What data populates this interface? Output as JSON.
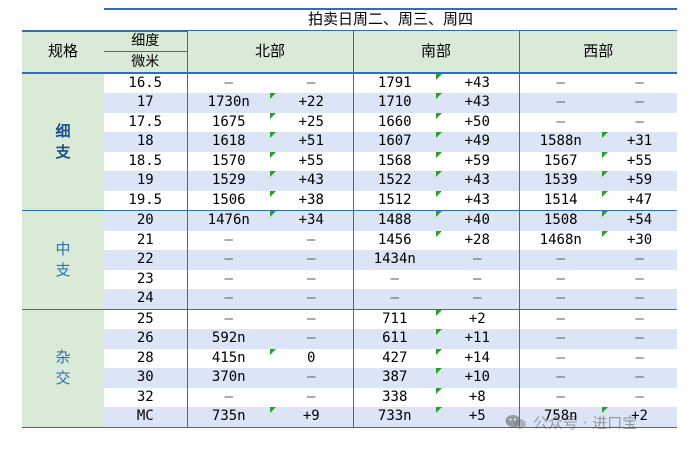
{
  "title": "拍卖日周二、周三、周四",
  "headers": {
    "spec": "规格",
    "fineness_top": "细度",
    "fineness_bottom": "微米",
    "regions": [
      "北部",
      "南部",
      "西部"
    ]
  },
  "groups": [
    {
      "label": "细\n支",
      "rows": [
        {
          "fineness": "16.5",
          "north": [
            "–",
            "–"
          ],
          "south": [
            "1791",
            "+43"
          ],
          "west": [
            "–",
            "–"
          ]
        },
        {
          "fineness": "17",
          "north": [
            "1730n",
            "+22"
          ],
          "south": [
            "1710",
            "+43"
          ],
          "west": [
            "–",
            "–"
          ]
        },
        {
          "fineness": "17.5",
          "north": [
            "1675",
            "+25"
          ],
          "south": [
            "1660",
            "+50"
          ],
          "west": [
            "–",
            "–"
          ]
        },
        {
          "fineness": "18",
          "north": [
            "1618",
            "+51"
          ],
          "south": [
            "1607",
            "+49"
          ],
          "west": [
            "1588n",
            "+31"
          ]
        },
        {
          "fineness": "18.5",
          "north": [
            "1570",
            "+55"
          ],
          "south": [
            "1568",
            "+59"
          ],
          "west": [
            "1567",
            "+55"
          ]
        },
        {
          "fineness": "19",
          "north": [
            "1529",
            "+43"
          ],
          "south": [
            "1522",
            "+43"
          ],
          "west": [
            "1539",
            "+59"
          ]
        },
        {
          "fineness": "19.5",
          "north": [
            "1506",
            "+38"
          ],
          "south": [
            "1512",
            "+43"
          ],
          "west": [
            "1514",
            "+47"
          ]
        }
      ]
    },
    {
      "label": "中\n支",
      "rows": [
        {
          "fineness": "20",
          "north": [
            "1476n",
            "+34"
          ],
          "south": [
            "1488",
            "+40"
          ],
          "west": [
            "1508",
            "+54"
          ]
        },
        {
          "fineness": "21",
          "north": [
            "–",
            "–"
          ],
          "south": [
            "1456",
            "+28"
          ],
          "west": [
            "1468n",
            "+30"
          ]
        },
        {
          "fineness": "22",
          "north": [
            "–",
            "–"
          ],
          "south": [
            "1434n",
            "–"
          ],
          "west": [
            "–",
            "–"
          ]
        },
        {
          "fineness": "23",
          "north": [
            "–",
            "–"
          ],
          "south": [
            "–",
            "–"
          ],
          "west": [
            "–",
            "–"
          ]
        },
        {
          "fineness": "24",
          "north": [
            "–",
            "–"
          ],
          "south": [
            "–",
            "–"
          ],
          "west": [
            "–",
            "–"
          ]
        }
      ]
    },
    {
      "label": "杂\n交",
      "rows": [
        {
          "fineness": "25",
          "north": [
            "–",
            "–"
          ],
          "south": [
            "711",
            "+2"
          ],
          "west": [
            "–",
            "–"
          ]
        },
        {
          "fineness": "26",
          "north": [
            "592n",
            "–"
          ],
          "south": [
            "611",
            "+11"
          ],
          "west": [
            "–",
            "–"
          ]
        },
        {
          "fineness": "28",
          "north": [
            "415n",
            "0"
          ],
          "south": [
            "427",
            "+14"
          ],
          "west": [
            "–",
            "–"
          ]
        },
        {
          "fineness": "30",
          "north": [
            "370n",
            "–"
          ],
          "south": [
            "387",
            "+10"
          ],
          "west": [
            "–",
            "–"
          ]
        },
        {
          "fineness": "32",
          "north": [
            "–",
            "–"
          ],
          "south": [
            "338",
            "+8"
          ],
          "west": [
            "–",
            "–"
          ]
        },
        {
          "fineness": "MC",
          "north": [
            "735n",
            "+9"
          ],
          "south": [
            "733n",
            "+5"
          ],
          "west": [
            "758n",
            "+2"
          ]
        }
      ]
    }
  ],
  "watermark": "公众号 · 进口宝",
  "colors": {
    "grid": "#2e6fb8",
    "header_bg": "#d9ebd6",
    "band_bg": "#dbe5f6",
    "marker": "#2aa02a"
  }
}
